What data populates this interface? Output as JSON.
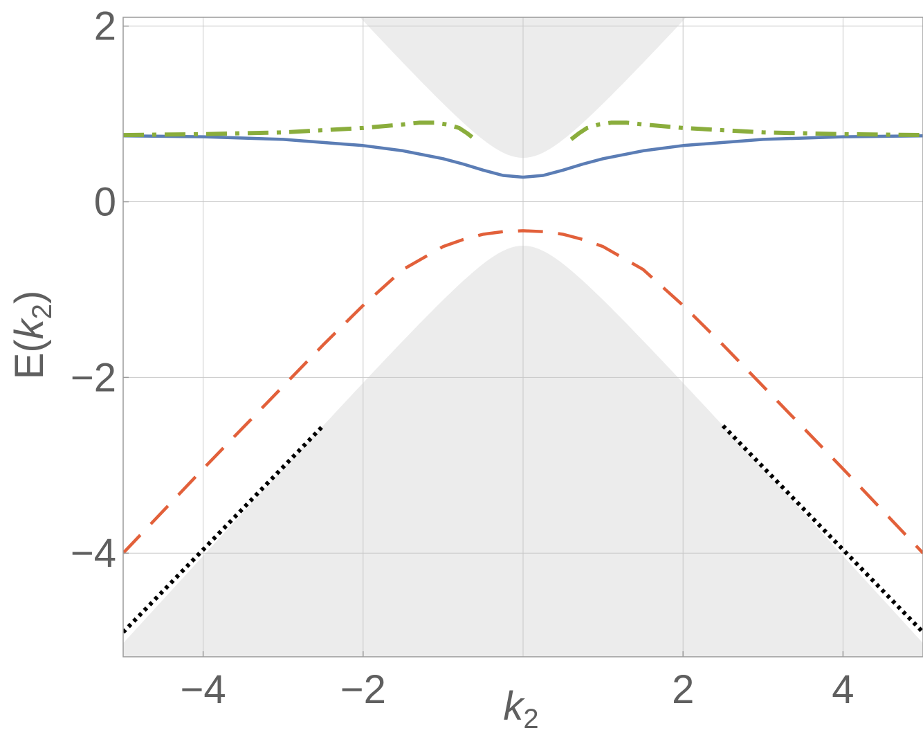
{
  "chart_data": {
    "type": "line",
    "xlabel": {
      "base": "k",
      "sub": "2"
    },
    "ylabel": {
      "prefix": "E(",
      "base": "k",
      "sub": "2",
      "suffix": ")"
    },
    "xlim": [
      -5,
      5
    ],
    "ylim": [
      -5.18,
      2.1
    ],
    "grid": true,
    "x_ticks": [
      {
        "value": -4,
        "label": "−4"
      },
      {
        "value": -2,
        "label": "−2"
      },
      {
        "value": 2,
        "label": "2"
      },
      {
        "value": 4,
        "label": "4"
      }
    ],
    "y_ticks": [
      {
        "value": 2,
        "label": "2"
      },
      {
        "value": 0,
        "label": "0"
      },
      {
        "value": -2,
        "label": "−2"
      },
      {
        "value": -4,
        "label": "−4"
      }
    ],
    "continuum": {
      "upper_edge": "E = sqrt(k^2 + 0.25), shaded above",
      "lower_edge": "E = -sqrt(k^2 + 0.25), shaded below",
      "color": "#ececec"
    },
    "series": [
      {
        "style": "solid",
        "color": "#5b7db5",
        "x": [
          -5,
          -4,
          -3,
          -2,
          -1.5,
          -1,
          -0.75,
          -0.5,
          -0.25,
          0,
          0.25,
          0.5,
          0.75,
          1,
          1.5,
          2,
          3,
          4,
          5
        ],
        "y": [
          0.75,
          0.74,
          0.71,
          0.64,
          0.58,
          0.49,
          0.43,
          0.36,
          0.3,
          0.28,
          0.3,
          0.36,
          0.43,
          0.49,
          0.58,
          0.64,
          0.71,
          0.74,
          0.75
        ]
      },
      {
        "style": "dash-dot",
        "color": "#8aad3c",
        "segments": [
          {
            "x": [
              -5,
              -4,
              -3,
              -2,
              -1.5,
              -1.3,
              -1.1,
              -0.95,
              -0.8,
              -0.7,
              -0.6
            ],
            "y": [
              0.76,
              0.77,
              0.79,
              0.84,
              0.88,
              0.9,
              0.9,
              0.88,
              0.84,
              0.78,
              0.71
            ]
          },
          {
            "x": [
              0.6,
              0.7,
              0.8,
              0.95,
              1.1,
              1.3,
              1.5,
              2,
              3,
              4,
              5
            ],
            "y": [
              0.71,
              0.78,
              0.84,
              0.88,
              0.9,
              0.9,
              0.88,
              0.84,
              0.79,
              0.77,
              0.76
            ]
          }
        ]
      },
      {
        "style": "dashed",
        "color": "#e2603a",
        "x": [
          -5,
          -4.5,
          -4,
          -3.5,
          -3,
          -2.5,
          -2,
          -1.5,
          -1,
          -0.75,
          -0.5,
          -0.25,
          0,
          0.25,
          0.5,
          0.75,
          1,
          1.5,
          2,
          2.5,
          3,
          3.5,
          4,
          4.5,
          5
        ],
        "y": [
          -4.0,
          -3.52,
          -3.04,
          -2.57,
          -2.1,
          -1.63,
          -1.18,
          -0.77,
          -0.51,
          -0.43,
          -0.37,
          -0.34,
          -0.33,
          -0.34,
          -0.37,
          -0.43,
          -0.51,
          -0.77,
          -1.18,
          -1.63,
          -2.1,
          -2.57,
          -3.04,
          -3.52,
          -4.0
        ]
      },
      {
        "style": "dotted",
        "color": "#000000",
        "segments": [
          {
            "x": [
              -5,
              -2.5
            ],
            "y": [
              -4.9,
              -2.55
            ]
          },
          {
            "x": [
              2.5,
              5
            ],
            "y": [
              -2.55,
              -4.9
            ]
          }
        ]
      }
    ]
  }
}
